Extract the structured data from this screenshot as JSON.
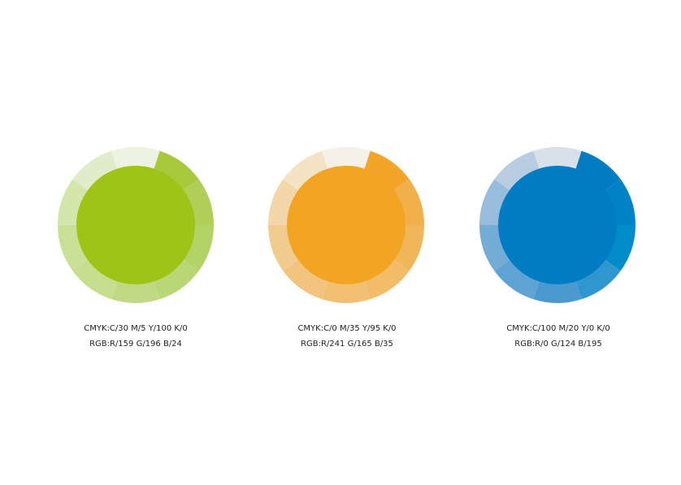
{
  "swatches": [
    {
      "name": "green",
      "main_color": "#9fc418",
      "ring_colors": [
        "#eef2e2",
        "#a8c93e",
        "#afcf58",
        "#b4d366",
        "#bad775",
        "#c0da83",
        "#c6de8d",
        "#cae097",
        "#d3e6ab",
        "#e1ecca"
      ],
      "cmyk": "CMYK:C/30  M/5  Y/100  K/0",
      "rgb": "RGB:R/159  G/196  B/24"
    },
    {
      "name": "orange",
      "main_color": "#f1a523",
      "ring_colors": [
        "#f6f1e8",
        "#f3a52a",
        "#f2b04a",
        "#f1b65a",
        "#f2bc68",
        "#f2c073",
        "#f3c47f",
        "#f2cb8f",
        "#f3d7aa",
        "#f5e3c6"
      ],
      "cmyk": "CMYK:C/0  M/35  Y/95  K/0",
      "rgb": "RGB:R/241  G/165  B/35"
    },
    {
      "name": "blue",
      "main_color": "#007cc3",
      "ring_colors": [
        "#d8e1ea",
        "#007cc3",
        "#0083c6",
        "#008bc9",
        "#2f96cf",
        "#4a9ad0",
        "#5ea3d4",
        "#74acd6",
        "#98bcdc",
        "#b8cde1"
      ],
      "cmyk": "CMYK:C/100  M/20  Y/0  K/0",
      "rgb": "RGB:R/0  G/124  B/195"
    }
  ]
}
